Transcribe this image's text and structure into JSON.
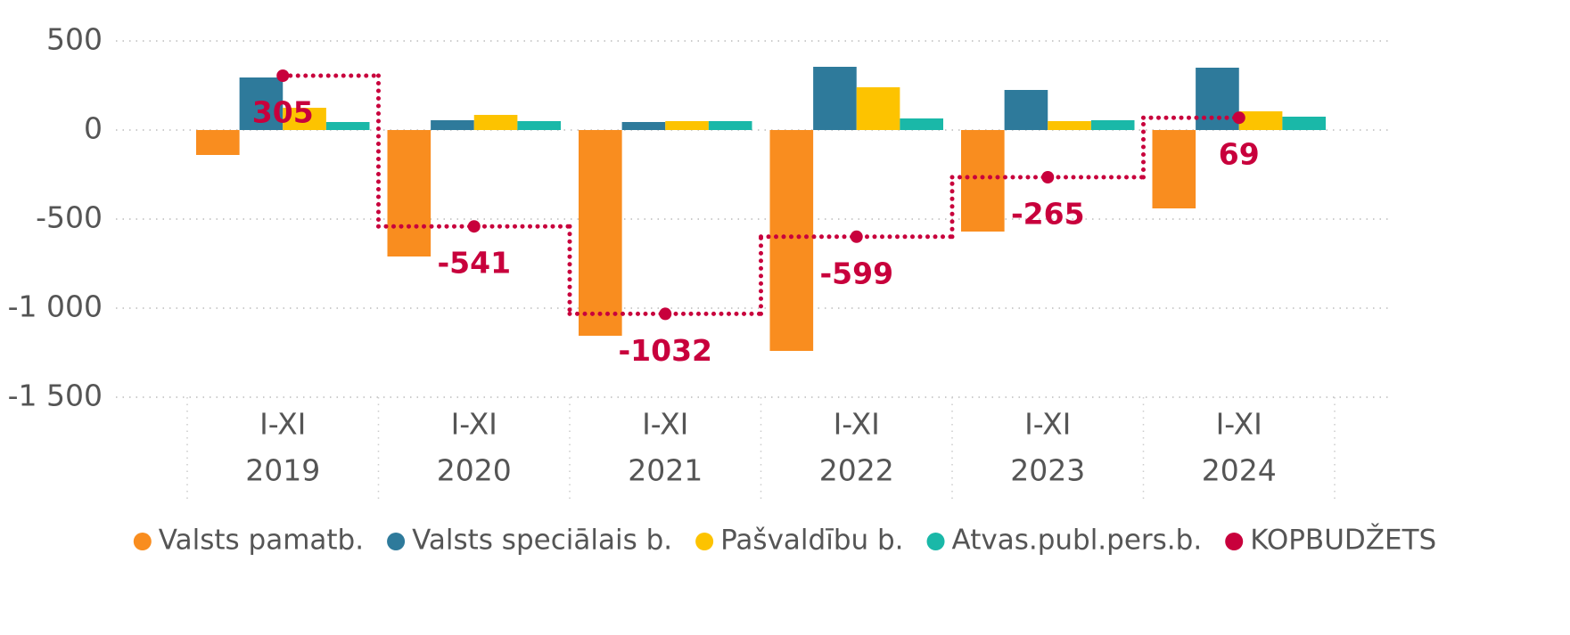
{
  "chart_data": {
    "type": "bar",
    "categories": [
      [
        "I-XI",
        "2019"
      ],
      [
        "I-XI",
        "2020"
      ],
      [
        "I-XI",
        "2021"
      ],
      [
        "I-XI",
        "2022"
      ],
      [
        "I-XI",
        "2023"
      ],
      [
        "I-XI",
        "2024"
      ]
    ],
    "series": [
      {
        "name": "Valsts pamatb.",
        "color": "#f98d1f",
        "values": [
          -140,
          -710,
          -1155,
          -1240,
          -570,
          -440
        ]
      },
      {
        "name": "Valsts speciālais b.",
        "color": "#2e7a9b",
        "values": [
          295,
          55,
          45,
          355,
          225,
          350
        ]
      },
      {
        "name": "Pašvaldību b.",
        "color": "#fdc300",
        "values": [
          125,
          85,
          50,
          240,
          50,
          105
        ]
      },
      {
        "name": "Atvas.publ.pers.b.",
        "color": "#1ab8a8",
        "values": [
          45,
          50,
          50,
          65,
          55,
          75
        ]
      },
      {
        "name": "KOPBUDŽETS",
        "color": "#c8003c",
        "type": "step",
        "values": [
          305,
          -541,
          -1032,
          -599,
          -265,
          69
        ]
      }
    ],
    "ylim": [
      -1500,
      500
    ],
    "yticks": [
      500,
      0,
      -500,
      {
        "value": -1000,
        "label": "-1 000"
      },
      {
        "value": -1500,
        "label": "-1 500"
      }
    ],
    "grid": true,
    "legend": "bottom"
  }
}
